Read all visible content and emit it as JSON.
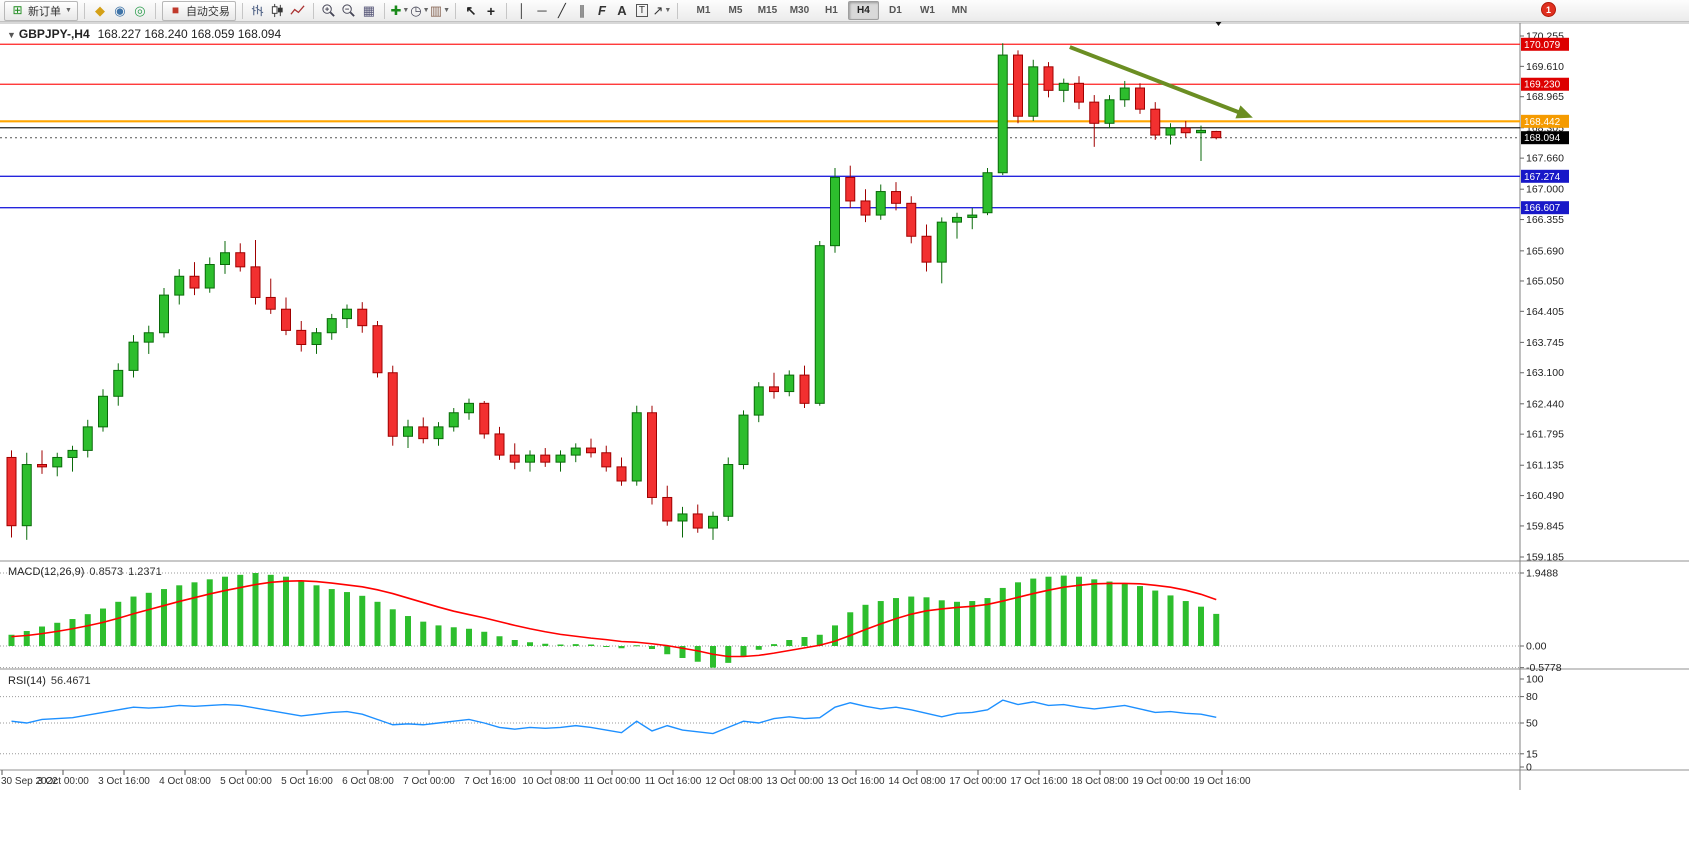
{
  "window": {
    "notification_count": "1"
  },
  "toolbar": {
    "new_order_label": "新订单",
    "autotrading_label": "自动交易",
    "fib_label": "F",
    "text_tool_label": "A",
    "label_tool_label": "T",
    "timeframes": [
      "M1",
      "M5",
      "M15",
      "M30",
      "H1",
      "H4",
      "D1",
      "W1",
      "MN"
    ],
    "active_timeframe": "H4"
  },
  "chart": {
    "title": "GBPJPY-,H4",
    "ohlc_text": "168.227 168.240 168.059 168.094"
  },
  "indicators": {
    "macd": {
      "label": "MACD(12,26,9)",
      "value_main": "0.8573",
      "value_signal": "1.2371"
    },
    "rsi": {
      "label": "RSI(14)",
      "value": "56.4671"
    }
  },
  "chart_data": {
    "type": "candlestick",
    "symbol": "GBPJPY-",
    "period": "H4",
    "current_bar": {
      "open": 168.227,
      "high": 168.24,
      "low": 168.059,
      "close": 168.094
    },
    "y_axis": {
      "min": 159.185,
      "max": 170.255,
      "ticks": [
        170.255,
        169.61,
        168.965,
        168.305,
        167.66,
        167.0,
        166.355,
        165.69,
        165.05,
        164.405,
        163.745,
        163.1,
        162.44,
        161.795,
        161.135,
        160.49,
        159.845,
        159.185
      ]
    },
    "x_labels": [
      "30 Sep 2022",
      "3 Oct 00:00",
      "3 Oct 16:00",
      "4 Oct 08:00",
      "5 Oct 00:00",
      "5 Oct 16:00",
      "6 Oct 08:00",
      "7 Oct 00:00",
      "7 Oct 16:00",
      "10 Oct 08:00",
      "11 Oct 00:00",
      "11 Oct 16:00",
      "12 Oct 08:00",
      "13 Oct 00:00",
      "13 Oct 16:00",
      "14 Oct 08:00",
      "17 Oct 00:00",
      "17 Oct 16:00",
      "18 Oct 08:00",
      "19 Oct 00:00",
      "19 Oct 16:00"
    ],
    "candles": [
      [
        161.3,
        161.45,
        159.6,
        159.85
      ],
      [
        159.85,
        161.4,
        159.55,
        161.15
      ],
      [
        161.15,
        161.45,
        160.95,
        161.1
      ],
      [
        161.1,
        161.4,
        160.9,
        161.3
      ],
      [
        161.3,
        161.55,
        161.0,
        161.45
      ],
      [
        161.45,
        162.1,
        161.3,
        161.95
      ],
      [
        161.95,
        162.75,
        161.85,
        162.6
      ],
      [
        162.6,
        163.3,
        162.4,
        163.15
      ],
      [
        163.15,
        163.9,
        163.0,
        163.75
      ],
      [
        163.75,
        164.1,
        163.5,
        163.95
      ],
      [
        163.95,
        164.9,
        163.85,
        164.75
      ],
      [
        164.75,
        165.3,
        164.55,
        165.15
      ],
      [
        165.15,
        165.45,
        164.75,
        164.9
      ],
      [
        164.9,
        165.55,
        164.8,
        165.4
      ],
      [
        165.4,
        165.9,
        165.2,
        165.65
      ],
      [
        165.65,
        165.85,
        165.25,
        165.35
      ],
      [
        165.35,
        165.92,
        164.55,
        164.7
      ],
      [
        164.7,
        165.1,
        164.35,
        164.45
      ],
      [
        164.45,
        164.7,
        163.9,
        164.0
      ],
      [
        164.0,
        164.2,
        163.55,
        163.7
      ],
      [
        163.7,
        164.05,
        163.5,
        163.95
      ],
      [
        163.95,
        164.35,
        163.8,
        164.25
      ],
      [
        164.25,
        164.55,
        164.05,
        164.45
      ],
      [
        164.45,
        164.6,
        163.95,
        164.1
      ],
      [
        164.1,
        164.2,
        163.0,
        163.1
      ],
      [
        163.1,
        163.25,
        161.55,
        161.75
      ],
      [
        161.75,
        162.1,
        161.5,
        161.95
      ],
      [
        161.95,
        162.15,
        161.6,
        161.7
      ],
      [
        161.7,
        162.05,
        161.55,
        161.95
      ],
      [
        161.95,
        162.35,
        161.85,
        162.25
      ],
      [
        162.25,
        162.55,
        162.1,
        162.45
      ],
      [
        162.45,
        162.5,
        161.7,
        161.8
      ],
      [
        161.8,
        161.95,
        161.25,
        161.35
      ],
      [
        161.35,
        161.6,
        161.05,
        161.2
      ],
      [
        161.2,
        161.45,
        161.0,
        161.35
      ],
      [
        161.35,
        161.5,
        161.1,
        161.2
      ],
      [
        161.2,
        161.45,
        161.0,
        161.35
      ],
      [
        161.35,
        161.6,
        161.2,
        161.5
      ],
      [
        161.5,
        161.7,
        161.3,
        161.4
      ],
      [
        161.4,
        161.55,
        161.0,
        161.1
      ],
      [
        161.1,
        161.3,
        160.7,
        160.8
      ],
      [
        160.8,
        162.4,
        160.7,
        162.25
      ],
      [
        162.25,
        162.4,
        160.3,
        160.45
      ],
      [
        160.45,
        160.7,
        159.85,
        159.95
      ],
      [
        159.95,
        160.25,
        159.6,
        160.1
      ],
      [
        160.1,
        160.3,
        159.7,
        159.8
      ],
      [
        159.8,
        160.15,
        159.55,
        160.05
      ],
      [
        160.05,
        161.3,
        159.95,
        161.15
      ],
      [
        161.15,
        162.3,
        161.05,
        162.2
      ],
      [
        162.2,
        162.9,
        162.05,
        162.8
      ],
      [
        162.8,
        163.1,
        162.55,
        162.7
      ],
      [
        162.7,
        163.15,
        162.6,
        163.05
      ],
      [
        163.05,
        163.25,
        162.35,
        162.45
      ],
      [
        162.45,
        165.9,
        162.4,
        165.8
      ],
      [
        165.8,
        167.45,
        165.65,
        167.25
      ],
      [
        167.25,
        167.5,
        166.6,
        166.75
      ],
      [
        166.75,
        167.0,
        166.3,
        166.45
      ],
      [
        166.45,
        167.1,
        166.35,
        166.95
      ],
      [
        166.95,
        167.15,
        166.55,
        166.7
      ],
      [
        166.7,
        166.85,
        165.85,
        166.0
      ],
      [
        166.0,
        166.25,
        165.25,
        165.45
      ],
      [
        165.45,
        166.4,
        165.0,
        166.3
      ],
      [
        166.3,
        166.5,
        165.95,
        166.4
      ],
      [
        166.4,
        166.6,
        166.15,
        166.45
      ],
      [
        166.5,
        167.45,
        166.45,
        167.35
      ],
      [
        167.35,
        170.1,
        167.3,
        169.85
      ],
      [
        169.85,
        169.95,
        168.4,
        168.55
      ],
      [
        168.55,
        169.75,
        168.45,
        169.6
      ],
      [
        169.6,
        169.7,
        168.95,
        169.1
      ],
      [
        169.1,
        169.35,
        168.85,
        169.25
      ],
      [
        169.25,
        169.4,
        168.7,
        168.85
      ],
      [
        168.85,
        169.0,
        167.9,
        168.4
      ],
      [
        168.4,
        169.0,
        168.3,
        168.9
      ],
      [
        168.9,
        169.3,
        168.75,
        169.15
      ],
      [
        169.15,
        169.25,
        168.6,
        168.7
      ],
      [
        168.7,
        168.85,
        168.05,
        168.15
      ],
      [
        168.15,
        168.4,
        167.95,
        168.3
      ],
      [
        168.3,
        168.45,
        168.1,
        168.2
      ],
      [
        168.2,
        168.35,
        167.6,
        168.25
      ],
      [
        168.227,
        168.24,
        168.059,
        168.094
      ]
    ],
    "colors": {
      "up": "#2DBE2D",
      "down": "#F23030",
      "up_border": "#0A6A0A",
      "down_border": "#A00000",
      "background": "#FFFFFF"
    },
    "hlines": [
      {
        "price": 170.079,
        "color": "#FF2020",
        "width": 1.2,
        "box": "#DD0000"
      },
      {
        "price": 169.23,
        "color": "#FF2020",
        "width": 1.2,
        "box": "#DD0000"
      },
      {
        "price": 168.442,
        "color": "#FFA500",
        "width": 2.2,
        "box": "#F59B00"
      },
      {
        "price": 168.305,
        "color": "#222222",
        "width": 1.2,
        "box": null
      },
      {
        "price": 167.274,
        "color": "#2525DD",
        "width": 1.4,
        "box": "#1818C8"
      },
      {
        "price": 166.607,
        "color": "#2525DD",
        "width": 1.4,
        "box": "#1818C8"
      }
    ],
    "bid_line": {
      "price": 168.094,
      "box_color": "#000000"
    },
    "trend_arrow": {
      "from_index": 69.4,
      "from_price": 170.02,
      "to_index": 81.4,
      "to_price": 168.52,
      "color": "#6B8E23"
    },
    "macd": {
      "scale": {
        "max": 1.9488,
        "mid": 0.0,
        "min": -0.5778
      },
      "scale_labels": [
        "1.9488",
        "0.00",
        "-0.5778"
      ],
      "bar_color": "#2DBE2D",
      "signal_color": "#FF0000",
      "values": [
        0.3,
        0.4,
        0.52,
        0.62,
        0.72,
        0.85,
        1.0,
        1.18,
        1.32,
        1.42,
        1.52,
        1.62,
        1.7,
        1.78,
        1.85,
        1.9,
        1.9488,
        1.9,
        1.85,
        1.74,
        1.62,
        1.52,
        1.44,
        1.34,
        1.18,
        0.98,
        0.8,
        0.65,
        0.55,
        0.5,
        0.46,
        0.38,
        0.26,
        0.16,
        0.1,
        0.06,
        0.04,
        0.05,
        0.04,
        0.0,
        -0.06,
        0.02,
        -0.08,
        -0.22,
        -0.32,
        -0.42,
        -0.5778,
        -0.45,
        -0.28,
        -0.1,
        0.05,
        0.16,
        0.24,
        0.3,
        0.55,
        0.9,
        1.1,
        1.2,
        1.28,
        1.32,
        1.3,
        1.22,
        1.18,
        1.2,
        1.28,
        1.55,
        1.7,
        1.8,
        1.85,
        1.88,
        1.85,
        1.78,
        1.72,
        1.68,
        1.6,
        1.48,
        1.35,
        1.2,
        1.05,
        0.8573
      ],
      "signal": [
        0.25,
        0.28,
        0.33,
        0.39,
        0.46,
        0.54,
        0.63,
        0.74,
        0.86,
        0.97,
        1.08,
        1.19,
        1.29,
        1.39,
        1.48,
        1.56,
        1.64,
        1.7,
        1.73,
        1.74,
        1.72,
        1.68,
        1.63,
        1.58,
        1.5,
        1.4,
        1.28,
        1.16,
        1.04,
        0.93,
        0.84,
        0.75,
        0.65,
        0.55,
        0.46,
        0.38,
        0.31,
        0.26,
        0.21,
        0.17,
        0.12,
        0.1,
        0.06,
        0.01,
        -0.06,
        -0.13,
        -0.22,
        -0.28,
        -0.28,
        -0.25,
        -0.19,
        -0.12,
        -0.05,
        0.02,
        0.13,
        0.28,
        0.44,
        0.59,
        0.73,
        0.85,
        0.94,
        0.99,
        1.03,
        1.06,
        1.11,
        1.2,
        1.3,
        1.4,
        1.49,
        1.57,
        1.62,
        1.66,
        1.67,
        1.67,
        1.66,
        1.62,
        1.57,
        1.49,
        1.38,
        1.2371
      ]
    },
    "rsi": {
      "levels": [
        80,
        50,
        15
      ],
      "scale_labels": [
        100,
        80,
        50,
        15,
        0
      ],
      "line_color": "#1E90FF",
      "values": [
        52,
        50,
        54,
        55,
        56,
        59,
        62,
        65,
        68,
        67,
        68,
        70,
        69,
        70,
        71,
        70,
        67,
        64,
        61,
        58,
        60,
        62,
        63,
        60,
        54,
        48,
        49,
        48,
        50,
        52,
        54,
        50,
        45,
        43,
        45,
        44,
        45,
        47,
        45,
        42,
        39,
        52,
        41,
        47,
        42,
        40,
        38,
        45,
        52,
        50,
        55,
        57,
        55,
        56,
        68,
        73,
        69,
        66,
        68,
        65,
        61,
        57,
        61,
        62,
        65,
        76,
        71,
        74,
        70,
        71,
        68,
        66,
        68,
        70,
        66,
        62,
        63,
        61,
        60,
        56.4671
      ]
    }
  }
}
